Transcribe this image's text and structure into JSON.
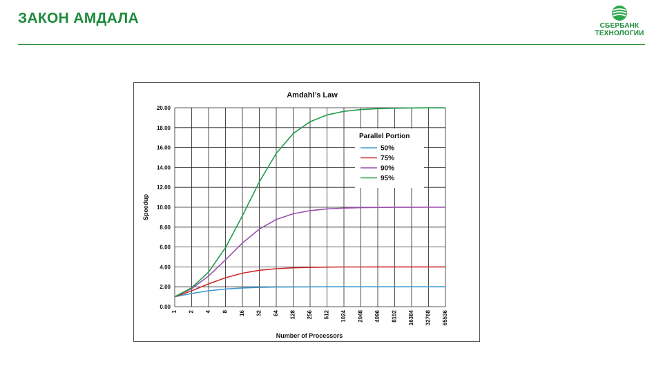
{
  "slide": {
    "title": "ЗАКОН АМДАЛА",
    "logo_line1": "СБЕРБАНК",
    "logo_line2": "ТЕХНОЛОГИИ",
    "accent_color": "#1e8a3a"
  },
  "chart_data": {
    "type": "line",
    "title": "Amdahl’s Law",
    "xlabel": "Number of Processors",
    "ylabel": "Speedup",
    "x_scale": "log2",
    "x": [
      1,
      2,
      4,
      8,
      16,
      32,
      64,
      128,
      256,
      512,
      1024,
      2048,
      4096,
      8192,
      16384,
      32768,
      65536
    ],
    "x_tick_labels": [
      "1",
      "2",
      "4",
      "8",
      "16",
      "32",
      "64",
      "128",
      "256",
      "512",
      "1024",
      "2048",
      "4096",
      "8192",
      "16384",
      "32768",
      "65536"
    ],
    "ylim": [
      0,
      20
    ],
    "y_ticks": [
      0,
      2,
      4,
      6,
      8,
      10,
      12,
      14,
      16,
      18,
      20
    ],
    "y_tick_labels": [
      "0.00",
      "2.00",
      "4.00",
      "6.00",
      "8.00",
      "10.00",
      "12.00",
      "14.00",
      "16.00",
      "18.00",
      "20.00"
    ],
    "grid": true,
    "legend": {
      "title": "Parallel Portion",
      "placement": "top-right"
    },
    "series": [
      {
        "name": "50%",
        "color": "#3d9bd1",
        "values": [
          1.0,
          1.33,
          1.6,
          1.78,
          1.88,
          1.94,
          1.97,
          1.98,
          1.99,
          2.0,
          2.0,
          2.0,
          2.0,
          2.0,
          2.0,
          2.0,
          2.0
        ]
      },
      {
        "name": "75%",
        "color": "#cc2b2b",
        "values": [
          1.0,
          1.6,
          2.29,
          2.91,
          3.37,
          3.66,
          3.82,
          3.91,
          3.95,
          3.98,
          3.99,
          3.99,
          4.0,
          4.0,
          4.0,
          4.0,
          4.0
        ]
      },
      {
        "name": "90%",
        "color": "#9a4fad",
        "values": [
          1.0,
          1.82,
          3.08,
          4.71,
          6.4,
          7.8,
          8.77,
          9.34,
          9.66,
          9.83,
          9.91,
          9.96,
          9.98,
          9.99,
          9.99,
          10.0,
          10.0
        ]
      },
      {
        "name": "95%",
        "color": "#1f9a4b",
        "values": [
          1.0,
          1.9,
          3.48,
          5.93,
          9.14,
          12.55,
          15.42,
          17.41,
          18.6,
          19.28,
          19.64,
          19.82,
          19.91,
          19.95,
          19.98,
          19.99,
          19.99
        ]
      }
    ]
  }
}
